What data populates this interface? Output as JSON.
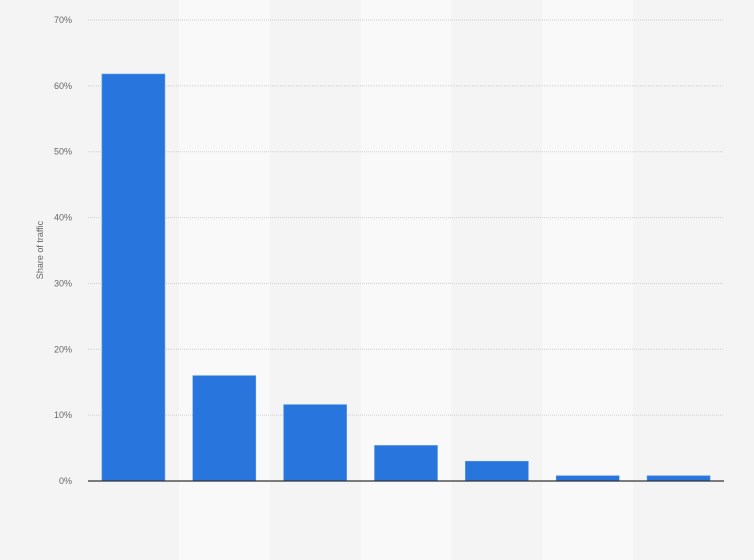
{
  "chart_data": {
    "type": "bar",
    "title": "",
    "xlabel": "",
    "ylabel": "Share of traffic",
    "categories": [
      "",
      "",
      "",
      "",
      "",
      "",
      ""
    ],
    "values": [
      61.8,
      16.0,
      11.6,
      5.4,
      3.0,
      0.8,
      0.8
    ],
    "ylim": [
      0,
      70
    ],
    "yticks": [
      0,
      10,
      20,
      30,
      40,
      50,
      60,
      70
    ],
    "ytick_labels": [
      "0%",
      "10%",
      "20%",
      "30%",
      "40%",
      "50%",
      "60%",
      "70%"
    ],
    "grid": true,
    "legend": "none",
    "colors": {
      "bar": "#2876dd",
      "background": "#f4f4f4",
      "band": "#f9f9f9",
      "axis": "#333333"
    }
  }
}
